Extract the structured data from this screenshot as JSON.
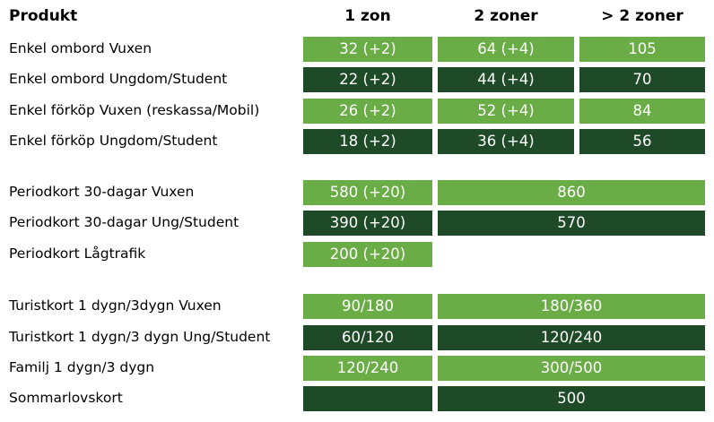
{
  "header": {
    "product": "Produkt",
    "zone1": "1 zon",
    "zone2": "2 zoner",
    "zone3": "> 2 zoner"
  },
  "rows": [
    {
      "label": "Enkel ombord Vuxen",
      "z1": "32 (+2)",
      "z2": "64 (+4)",
      "z3": "105"
    },
    {
      "label": "Enkel ombord Ungdom/Student",
      "z1": "22 (+2)",
      "z2": "44 (+4)",
      "z3": "70"
    },
    {
      "label": "Enkel förköp Vuxen (reskassa/Mobil)",
      "z1": "26 (+2)",
      "z2": "52 (+4)",
      "z3": "84"
    },
    {
      "label": "Enkel förköp Ungdom/Student",
      "z1": "18 (+2)",
      "z2": "36 (+4)",
      "z3": "56"
    },
    {
      "label": "Periodkort 30-dagar Vuxen",
      "z1": "580 (+20)",
      "z23": "860"
    },
    {
      "label": "Periodkort 30-dagar Ung/Student",
      "z1": "390 (+20)",
      "z23": "570"
    },
    {
      "label": "Periodkort Lågtrafik",
      "z1": "200 (+20)"
    },
    {
      "label": "Turistkort 1 dygn/3dygn Vuxen",
      "z1": "90/180",
      "z23": "180/360"
    },
    {
      "label": "Turistkort 1 dygn/3 dygn Ung/Student",
      "z1": "60/120",
      "z23": "120/240"
    },
    {
      "label": "Familj 1 dygn/3 dygn",
      "z1": "120/240",
      "z23": "300/500"
    },
    {
      "label": "Sommarlovskort",
      "z1": "",
      "z23": "500"
    }
  ],
  "colors": {
    "light_green": "#6aac45",
    "dark_green": "#1e4a27"
  }
}
